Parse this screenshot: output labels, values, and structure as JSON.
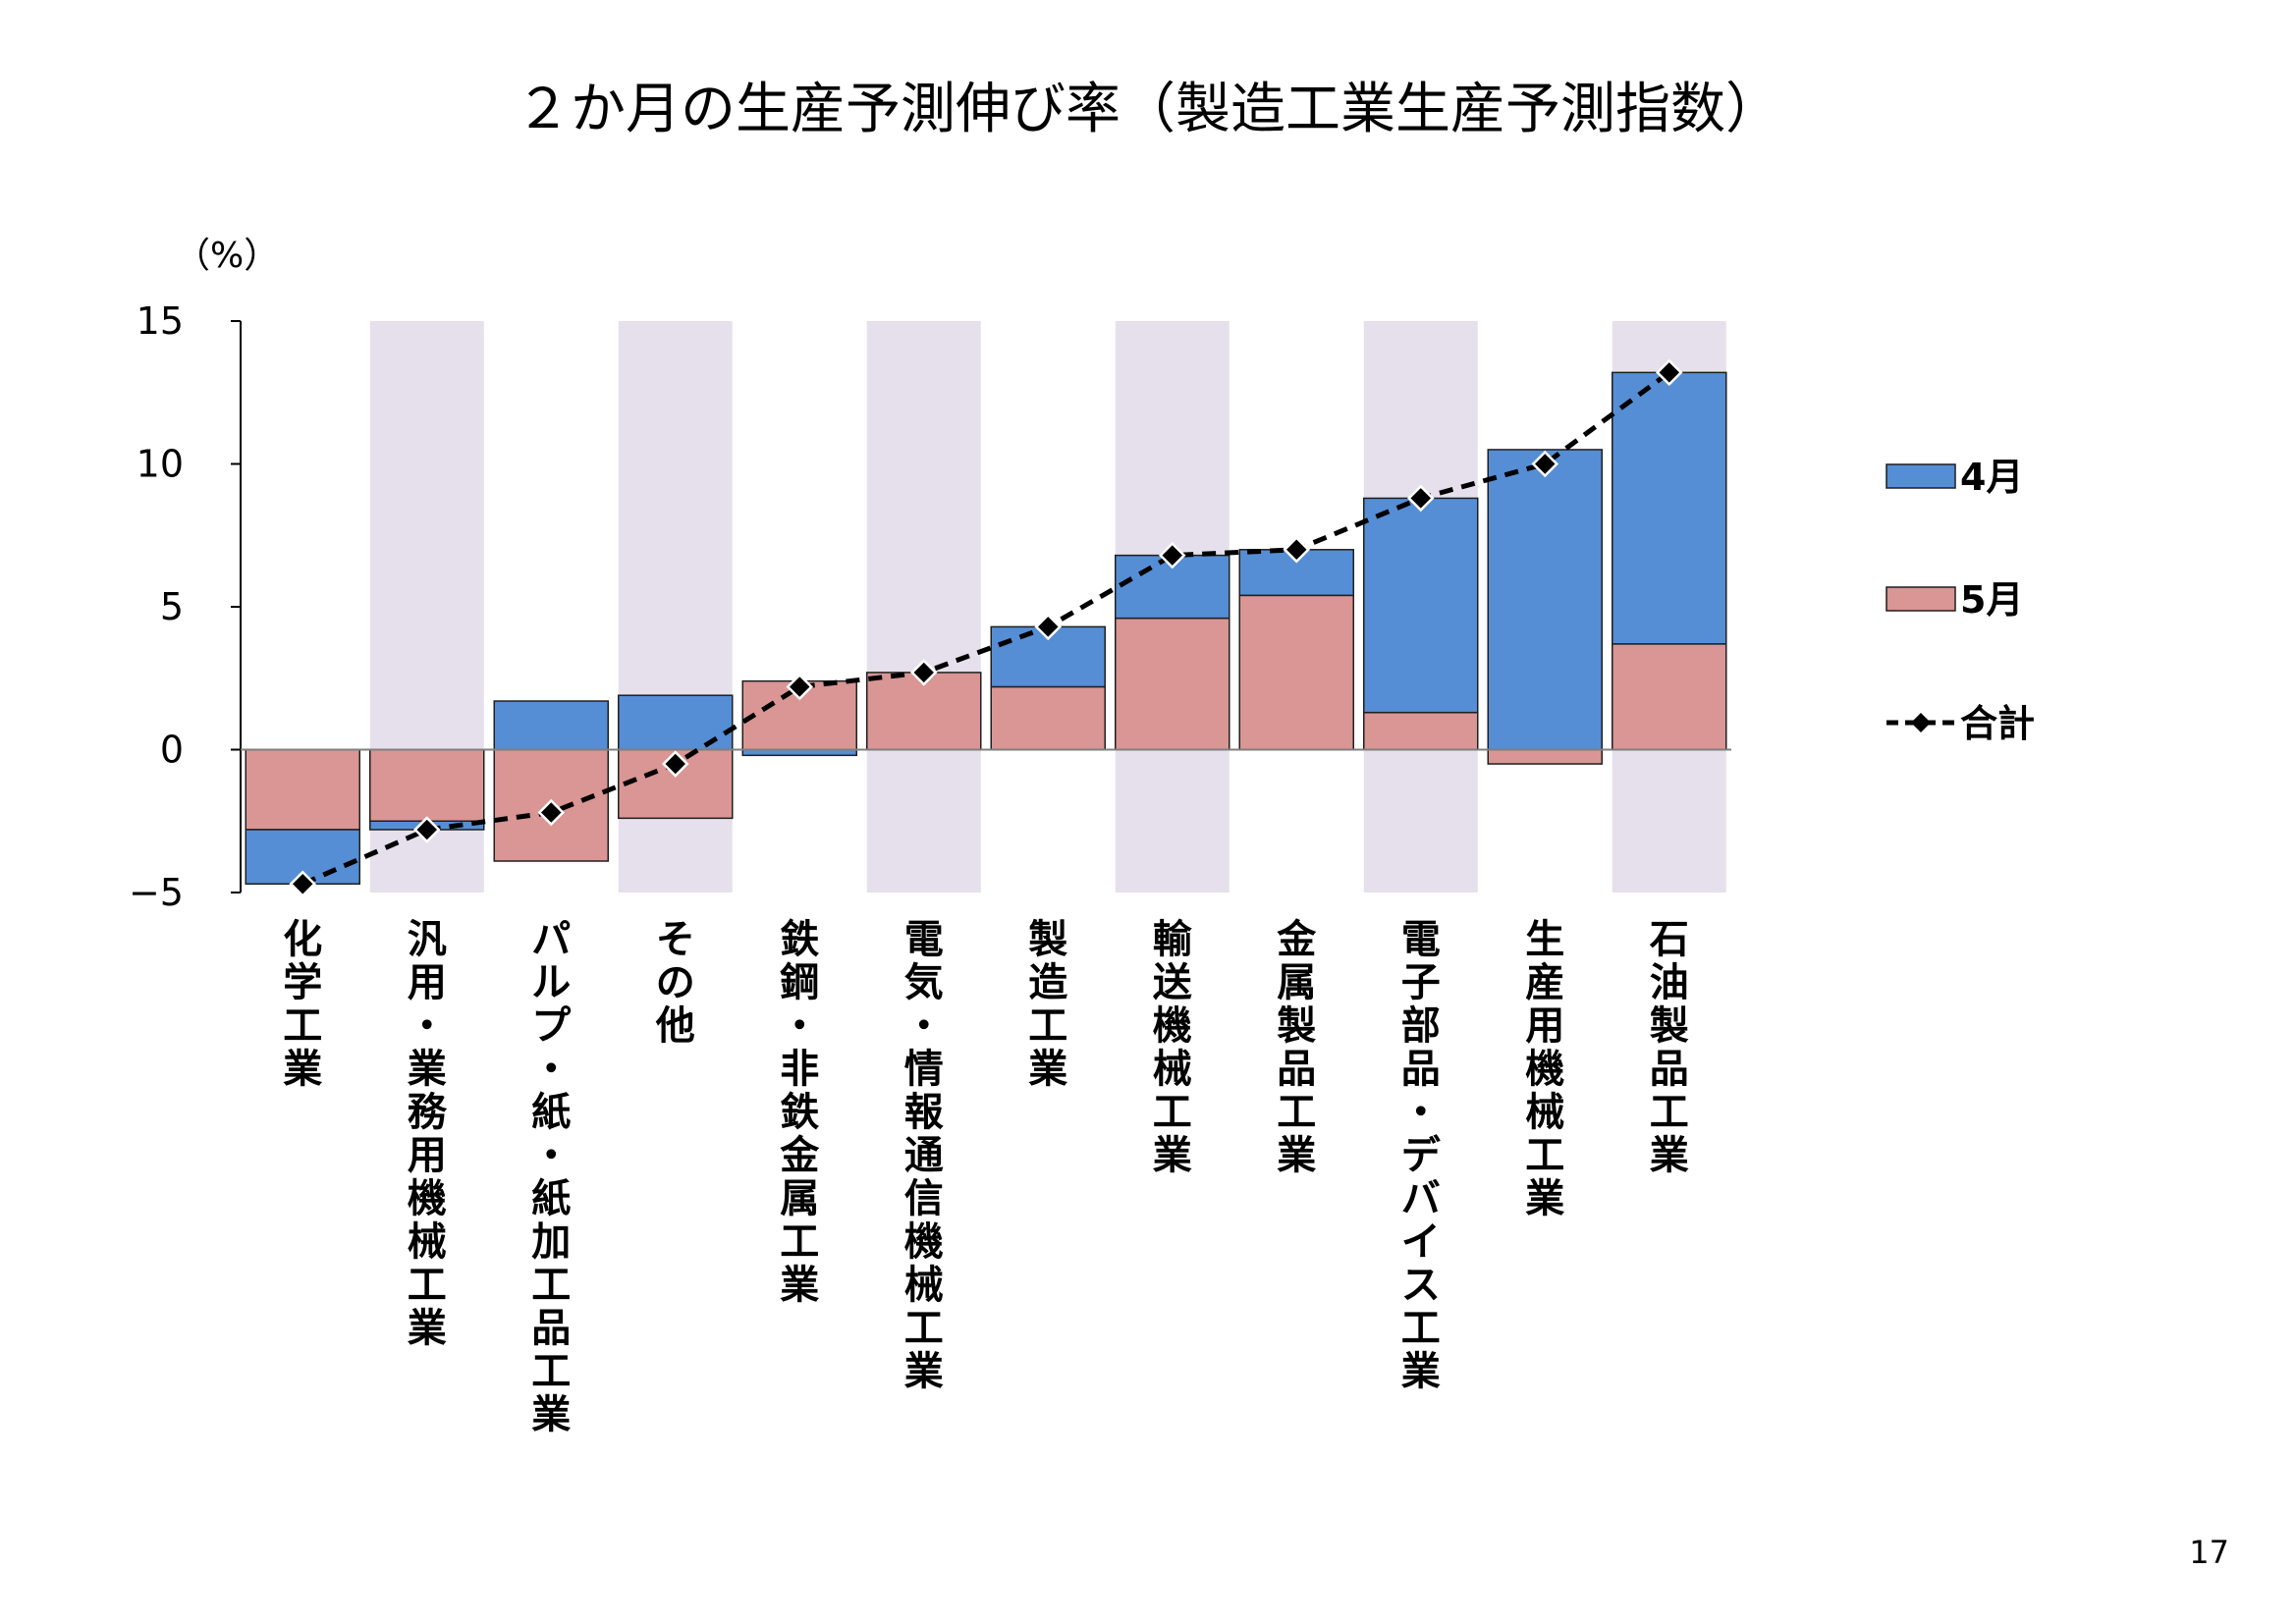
{
  "page_number": "17",
  "chart_data": {
    "type": "bar",
    "stacked": true,
    "title": "２か月の生産予測伸び率（製造工業生産予測指数）",
    "unit_label": "（%）",
    "ylim": [
      -5,
      15
    ],
    "yticks": [
      "15",
      "10",
      "5",
      "0",
      "−5"
    ],
    "ytick_values": [
      15,
      10,
      5,
      0,
      -5
    ],
    "categories": [
      "化学工業",
      "汎用・業務用機械工業",
      "パルプ・紙・紙加工品工業",
      "その他",
      "鉄鋼・非鉄金属工業",
      "電気・情報通信機械工業",
      "製造工業",
      "輸送機械工業",
      "金属製品工業",
      "電子部品・デバイス工業",
      "生産用機械工業",
      "石油製品工業"
    ],
    "shaded_categories": [
      1,
      3,
      5,
      7,
      9,
      11
    ],
    "series": [
      {
        "name": "5月",
        "kind": "bar",
        "color": "#d99694",
        "values": [
          -2.8,
          -2.5,
          -3.9,
          -2.4,
          2.4,
          2.7,
          2.2,
          4.6,
          5.4,
          1.3,
          -0.5,
          3.7
        ]
      },
      {
        "name": "4月",
        "kind": "bar",
        "color": "#558ed5",
        "values": [
          -1.9,
          -0.3,
          1.7,
          1.9,
          -0.2,
          0.0,
          2.1,
          2.2,
          1.6,
          7.5,
          10.5,
          9.5
        ]
      },
      {
        "name": "合計",
        "kind": "line",
        "color": "#000000",
        "dash": true,
        "marker": "diamond",
        "values": [
          -4.7,
          -2.8,
          -2.2,
          -0.5,
          2.2,
          2.7,
          4.3,
          6.8,
          7.0,
          8.8,
          10.0,
          13.2
        ]
      }
    ],
    "legend": {
      "position": "right",
      "items": [
        "4月",
        "5月",
        "合計"
      ]
    },
    "shade_color": "#e6e0ec",
    "grid": false
  }
}
